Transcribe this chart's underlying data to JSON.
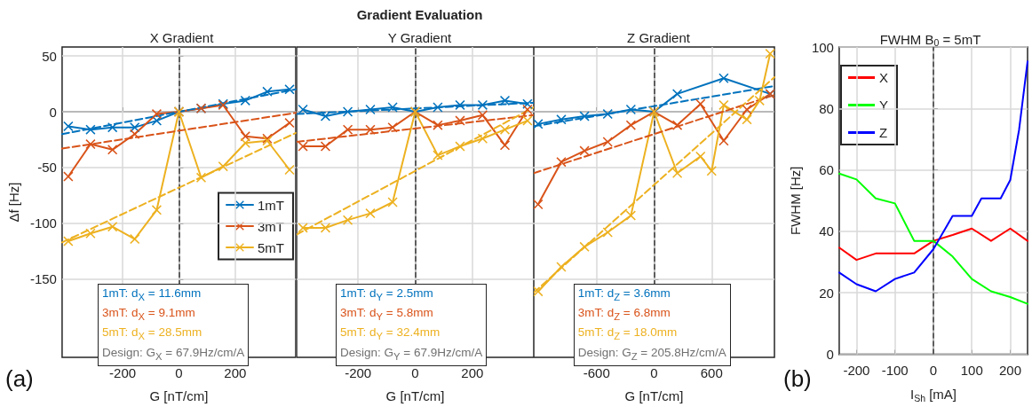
{
  "chart_data": [
    {
      "type": "line",
      "title": "X Gradient",
      "xlabel": "G [nT/cm]",
      "ylabel": "Δf [Hz]",
      "x": [
        -393,
        -314,
        -236,
        -157,
        -79,
        0,
        79,
        157,
        236,
        314,
        393
      ],
      "xlim": [
        -415,
        415
      ],
      "xticks": [
        -200,
        0,
        200
      ],
      "ylim": [
        -220,
        58
      ],
      "yticks": [
        -150,
        -100,
        -50,
        0,
        50
      ],
      "grid": true,
      "legend": "right",
      "marker": "cross",
      "line_style": "solid",
      "ref_lines": [
        {
          "axis": "x",
          "value": 0,
          "line_style": "dashed",
          "color": "#404040"
        }
      ],
      "annotations": [
        "(a)",
        "1mT: d$_{X}$ = 11.6mm",
        "3mT: d$_{X}$ = 9.1mm",
        "5mT: d$_{X}$ = 28.5mm",
        "Design: G$_{X}$ = 67.9Hz/cm/A"
      ],
      "series": [
        {
          "name": "1mT",
          "color": "#0072bd",
          "values": [
            -13,
            -16,
            -14,
            -14,
            -8,
            0,
            3,
            7,
            10,
            18,
            20
          ]
        },
        {
          "name": "3mT",
          "color": "#d95319",
          "values": [
            -58,
            -29,
            -34,
            -20,
            -2,
            0,
            3,
            6,
            -22,
            -24,
            -10
          ]
        },
        {
          "name": "5mT",
          "color": "#edb120",
          "values": [
            -116,
            -109,
            -103,
            -114,
            -88,
            0,
            -59,
            -49,
            -28,
            -26,
            -52
          ]
        },
        {
          "type": "line",
          "color": "#0072bd",
          "x": [
            -415,
            415
          ],
          "values": [
            -20,
            20
          ],
          "line_style": "dashed",
          "marker": "none"
        },
        {
          "type": "line",
          "color": "#d95319",
          "x": [
            -415,
            415
          ],
          "values": [
            -33,
            -1
          ],
          "line_style": "dashed",
          "marker": "none"
        },
        {
          "type": "line",
          "color": "#edb120",
          "x": [
            -415,
            415
          ],
          "values": [
            -117,
            -19
          ],
          "line_style": "dashed",
          "marker": "none"
        }
      ]
    },
    {
      "type": "line",
      "title": "Gradient Evaluation",
      "subtitle": "Y Gradient",
      "xlabel": "G [nT/cm]",
      "x": [
        -393,
        -314,
        -236,
        -157,
        -79,
        0,
        79,
        157,
        236,
        314,
        393
      ],
      "xlim": [
        -415,
        415
      ],
      "xticks": [
        -200,
        0,
        200
      ],
      "ylim": [
        -220,
        58
      ],
      "yticks": [
        -150,
        -100,
        -50,
        0,
        50
      ],
      "tick_labels": "x",
      "grid": true,
      "marker": "cross",
      "line_style": "solid",
      "ref_lines": [
        {
          "axis": "x",
          "value": 0,
          "line_style": "dashed",
          "color": "#404040"
        }
      ],
      "annotations": [
        "1mT: d$_{Y}$ = 2.5mm",
        "3mT: d$_{Y}$ = 5.8mm",
        "5mT: d$_{Y}$ = 32.4mm",
        "Design: G$_{Y}$ = 67.9Hz/cm/A"
      ],
      "series": [
        {
          "color": "#0072bd",
          "values": [
            2,
            -4,
            0,
            2,
            4,
            0,
            4,
            6,
            6,
            10,
            7
          ]
        },
        {
          "color": "#d95319",
          "values": [
            -31,
            -31,
            -16,
            -16,
            -14,
            0,
            -12,
            -8,
            -3,
            -30,
            2
          ]
        },
        {
          "color": "#edb120",
          "values": [
            -104,
            -104,
            -97,
            -91,
            -81,
            0,
            -39,
            -31,
            -24,
            -16,
            -8
          ]
        },
        {
          "type": "line",
          "color": "#0072bd",
          "x": [
            -415,
            415
          ],
          "values": [
            -2,
            8
          ],
          "line_style": "dashed",
          "marker": "none"
        },
        {
          "type": "line",
          "color": "#d95319",
          "x": [
            -415,
            415
          ],
          "values": [
            -27,
            -3
          ],
          "line_style": "dashed",
          "marker": "none"
        },
        {
          "type": "line",
          "color": "#edb120",
          "x": [
            -415,
            415
          ],
          "values": [
            -110,
            4
          ],
          "line_style": "dashed",
          "marker": "none"
        }
      ]
    },
    {
      "type": "line",
      "title": "Z Gradient",
      "xlabel": "G [nT/cm]",
      "x": [
        -1210,
        -968,
        -726,
        -484,
        -242,
        0,
        242,
        484,
        726,
        968,
        1210
      ],
      "xlim": [
        -1255,
        1255
      ],
      "xticks": [
        -600,
        0,
        600
      ],
      "ylim": [
        -220,
        58
      ],
      "yticks": [
        -150,
        -100,
        -50,
        0,
        50
      ],
      "tick_labels": "x",
      "grid": true,
      "marker": "cross",
      "line_style": "solid",
      "ref_lines": [
        {
          "axis": "x",
          "value": 0,
          "line_style": "dashed",
          "color": "#404040"
        }
      ],
      "annotations": [
        "1mT: d$_{Z}$ = 3.6mm",
        "3mT: d$_{Z}$ = 6.8mm",
        "5mT: d$_{Z}$ = 18.0mm",
        "Design: G$_{Z}$ = 205.8Hz/cm/A"
      ],
      "series": [
        {
          "color": "#0072bd",
          "x": [
            -1210,
            -968,
            -726,
            -484,
            -242,
            0,
            242,
            726,
            1210
          ],
          "values": [
            -11,
            -7,
            -4,
            -2,
            2,
            0,
            16,
            30,
            16
          ]
        },
        {
          "color": "#d95319",
          "values": [
            -83,
            -45,
            -35,
            -27,
            -12,
            0,
            -12,
            7,
            -26,
            2,
            16
          ]
        },
        {
          "color": "#edb120",
          "x": [
            -1210,
            -968,
            -726,
            -484,
            -242,
            0,
            242,
            484,
            600,
            726,
            968,
            1100,
            1210
          ],
          "values": [
            -161,
            -139,
            -121,
            -108,
            -93,
            0,
            -55,
            -40,
            -53,
            6,
            -7,
            10,
            52
          ]
        },
        {
          "type": "line",
          "color": "#0072bd",
          "x": [
            -1255,
            1255
          ],
          "values": [
            -13,
            23
          ],
          "line_style": "dashed",
          "marker": "none"
        },
        {
          "type": "line",
          "color": "#d95319",
          "x": [
            -1255,
            1255
          ],
          "values": [
            -55,
            15
          ],
          "line_style": "dashed",
          "marker": "none"
        },
        {
          "type": "line",
          "color": "#edb120",
          "x": [
            -1255,
            1255
          ],
          "values": [
            -162,
            31
          ],
          "line_style": "dashed",
          "marker": "none"
        }
      ]
    },
    {
      "type": "line",
      "title": "FWHM B$_{0}$ = 5mT",
      "xlabel": "I$_{Sh}$ [mA]",
      "ylabel": "FWHM [Hz]",
      "x": [
        -245,
        -200,
        -150,
        -100,
        -50,
        0,
        50,
        100,
        150,
        200,
        245
      ],
      "xlim": [
        -245,
        245
      ],
      "xticks": [
        -200,
        -100,
        0,
        100,
        200
      ],
      "ylim": [
        0,
        100
      ],
      "yticks": [
        0,
        20,
        40,
        60,
        80,
        100
      ],
      "grid": true,
      "legend": "top left",
      "marker": "none",
      "line_style": "solid",
      "ref_lines": [
        {
          "axis": "x",
          "value": 0,
          "line_style": "dashed",
          "color": "#404040"
        }
      ],
      "annotations": [
        "(b)"
      ],
      "series": [
        {
          "name": "X",
          "color": "#ff0000",
          "values": [
            34.7,
            30.7,
            32.8,
            32.8,
            32.8,
            36.9,
            38.8,
            40.9,
            36.9,
            40.9,
            36.9
          ]
        },
        {
          "name": "Y",
          "color": "#00ff00",
          "values": [
            58.8,
            56.9,
            50.7,
            49.1,
            36.9,
            36.9,
            31.8,
            24.5,
            20.5,
            18.6,
            16.4
          ]
        },
        {
          "name": "Z",
          "color": "#0000ff",
          "x": [
            -245,
            -200,
            -150,
            -100,
            -50,
            0,
            50,
            100,
            125,
            175,
            200,
            223,
            245
          ],
          "values": [
            26.6,
            22.8,
            20.5,
            24.5,
            26.6,
            34.2,
            45,
            45,
            50.7,
            50.7,
            56.7,
            73.1,
            95.3
          ]
        }
      ]
    }
  ]
}
